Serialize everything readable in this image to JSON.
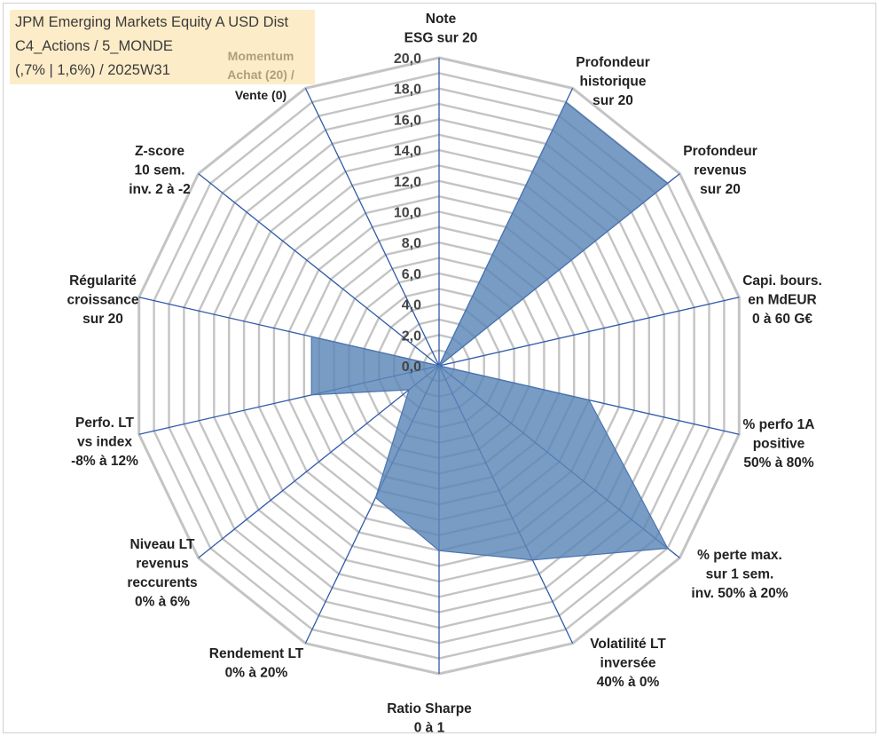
{
  "header": {
    "title_line1": "JPM Emerging Markets Equity A USD Dist",
    "title_line2": "C4_Actions / 5_MONDE",
    "title_line3": "(,7% | 1,6%) / 2025W31",
    "momentum_line1": "Momentum",
    "momentum_line2": "Achat (20) /",
    "momentum_line3": "Vente (0)"
  },
  "colors": {
    "fill": "#5b86b7",
    "stroke": "#4a74b0",
    "spoke": "#2f5aa8",
    "grid": "#c4c4c4",
    "title_bg": "#fdecc8",
    "momentum_text": "#b0a07a"
  },
  "chart_data": {
    "type": "radar",
    "title": "",
    "rmin": 0,
    "rmax": 20,
    "tick_step": 1,
    "tick_labels": [
      "0,0",
      "2,0",
      "4,0",
      "6,0",
      "8,0",
      "10,0",
      "12,0",
      "14,0",
      "16,0",
      "18,0",
      "20,0"
    ],
    "axes": [
      {
        "label": [
          "Note",
          "ESG sur 20"
        ],
        "value": 0
      },
      {
        "label": [
          "Profondeur",
          "historique",
          "sur 20"
        ],
        "value": 19
      },
      {
        "label": [
          "Profondeur",
          "revenus",
          "sur 20"
        ],
        "value": 19
      },
      {
        "label": [
          "Capi. bours.",
          "en MdEUR",
          "0 à 60 G€"
        ],
        "value": 0
      },
      {
        "label": [
          "% perfo 1A",
          "positive",
          "50% à 80%"
        ],
        "value": 10
      },
      {
        "label": [
          "% perte max.",
          "sur 1 sem.",
          "inv. 50% à 20%"
        ],
        "value": 19
      },
      {
        "label": [
          "Volatilité LT",
          "inversée",
          "40% à 0%"
        ],
        "value": 14
      },
      {
        "label": [
          "Ratio Sharpe",
          "0 à 1"
        ],
        "value": 12
      },
      {
        "label": [
          "Rendement LT",
          "0% à 20%"
        ],
        "value": 9.5
      },
      {
        "label": [
          "Niveau LT",
          "revenus",
          "reccurents",
          "0% à 6%"
        ],
        "value": 2.5
      },
      {
        "label": [
          "Perfo. LT",
          "vs index",
          "-8% à 12%"
        ],
        "value": 8.5
      },
      {
        "label": [
          "Régularité",
          "croissance",
          "sur 20"
        ],
        "value": 8.5
      },
      {
        "label": [
          "Z-score",
          "10 sem.",
          "inv. 2 à -2"
        ],
        "value": 0
      },
      {
        "label": [
          "Momentum",
          "Achat (20) /",
          "Vente (0)"
        ],
        "value": 0
      }
    ]
  }
}
